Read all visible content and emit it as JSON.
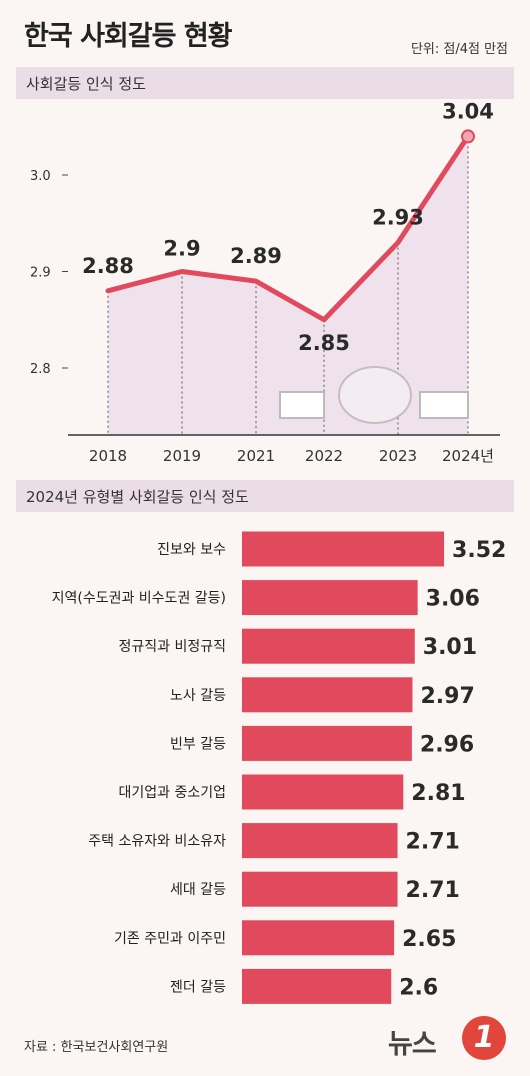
{
  "header": {
    "title": "한국 사회갈등 현황",
    "unit": "단위: 점/4점 만점"
  },
  "section1": {
    "label": "사회갈등 인식 정도"
  },
  "section2": {
    "label": "2024년 유형별 사회갈등 인식 정도"
  },
  "footer": {
    "source": "자료 : 한국보건사회연구원",
    "logo_text": "뉴스",
    "logo_mark": "1"
  },
  "colors": {
    "accent": "#e04a5c",
    "fill": "#efe2ec",
    "band": "#ebdde6"
  },
  "chart_data": [
    {
      "type": "line",
      "x": [
        "2018",
        "2019",
        "2021",
        "2022",
        "2023",
        "2024년"
      ],
      "values": [
        2.88,
        2.9,
        2.89,
        2.85,
        2.93,
        3.04
      ],
      "value_labels": [
        "2.88",
        "2.9",
        "2.89",
        "2.85",
        "2.93",
        "3.04"
      ],
      "y_ticks": [
        2.8,
        2.9,
        3.0
      ],
      "y_tick_labels": [
        "2.8",
        "2.9",
        "3.0"
      ],
      "ylim": [
        2.775,
        3.05
      ],
      "area_fill": true
    },
    {
      "type": "bar",
      "orientation": "horizontal",
      "categories": [
        "진보와 보수",
        "지역(수도권과 비수도권 갈등)",
        "정규직과 비정규직",
        "노사 갈등",
        "빈부 갈등",
        "대기업과 중소기업",
        "주택 소유자와 비소유자",
        "세대 갈등",
        "기존 주민과 이주민",
        "젠더 갈등"
      ],
      "values": [
        3.52,
        3.06,
        3.01,
        2.97,
        2.96,
        2.81,
        2.71,
        2.71,
        2.65,
        2.6
      ],
      "value_labels": [
        "3.52",
        "3.06",
        "3.01",
        "2.97",
        "2.96",
        "2.81",
        "2.71",
        "2.71",
        "2.65",
        "2.6"
      ]
    }
  ]
}
